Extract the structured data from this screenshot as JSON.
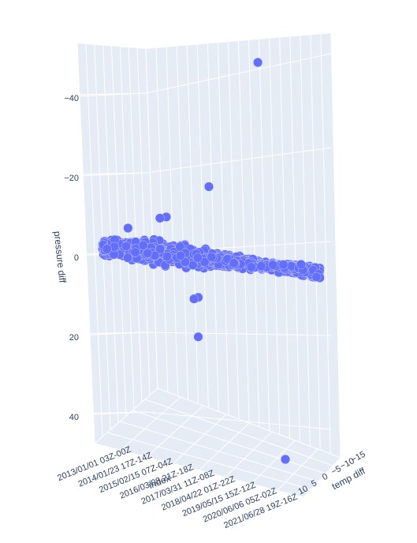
{
  "chart_data": {
    "type": "scatter",
    "axes": {
      "x": {
        "title": "index",
        "tick_labels": [
          "2013/01/01 03Z-00Z",
          "2014/01/23 17Z-14Z",
          "2015/02/15 07Z-04Z",
          "2016/03/08 21Z-18Z",
          "2017/03/31 11Z-08Z",
          "2018/04/22 01Z-22Z",
          "2019/05/15 15Z-12Z",
          "2020/06/06 05Z-02Z",
          "2021/06/28 19Z-16Z"
        ]
      },
      "y": {
        "title": "temp diff",
        "tick_labels": [
          "10",
          "5",
          "0",
          "−5",
          "−10",
          "−15"
        ],
        "tick_values": [
          10,
          5,
          0,
          -5,
          -10,
          -15
        ]
      },
      "z": {
        "title": "pressure diff",
        "tick_labels": [
          "−40",
          "−20",
          "0",
          "20",
          "40"
        ],
        "tick_values": [
          -40,
          -20,
          0,
          20,
          40
        ],
        "reversed": true
      }
    },
    "marker_color": "#636efa",
    "cluster": {
      "x_range": [
        0,
        1
      ],
      "z_range": [
        -4,
        4
      ],
      "note_count": 3500
    },
    "outliers": [
      {
        "x": 0.73,
        "z": -53
      },
      {
        "x": 0.5,
        "z": -20
      },
      {
        "x": 0.3,
        "z": -11
      },
      {
        "x": 0.27,
        "z": -10.5
      },
      {
        "x": 0.12,
        "z": -7
      },
      {
        "x": 0.45,
        "z": 8
      },
      {
        "x": 0.43,
        "z": 8.5
      },
      {
        "x": 0.45,
        "z": 18
      }
    ],
    "extra_points_screen_note": "one isolated point near bottom right",
    "grid": true
  }
}
